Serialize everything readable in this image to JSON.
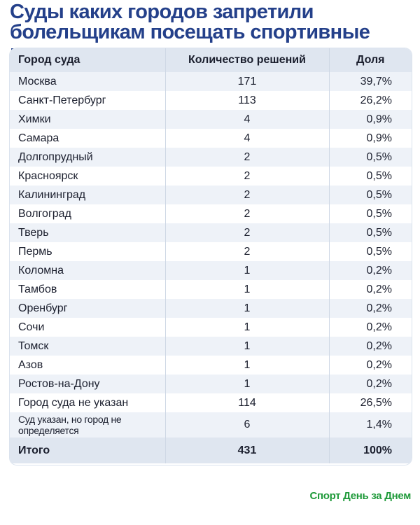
{
  "title": "Суды каких городов запретили болельщикам посещать спортивные мероприятия",
  "table": {
    "headers": [
      "Город суда",
      "Количество решений",
      "Доля"
    ],
    "rows": [
      [
        "Москва",
        "171",
        "39,7%"
      ],
      [
        "Санкт-Петербург",
        "113",
        "26,2%"
      ],
      [
        "Химки",
        "4",
        "0,9%"
      ],
      [
        "Самара",
        "4",
        "0,9%"
      ],
      [
        "Долгопрудный",
        "2",
        "0,5%"
      ],
      [
        "Красноярск",
        "2",
        "0,5%"
      ],
      [
        "Калининград",
        "2",
        "0,5%"
      ],
      [
        "Волгоград",
        "2",
        "0,5%"
      ],
      [
        "Тверь",
        "2",
        "0,5%"
      ],
      [
        "Пермь",
        "2",
        "0,5%"
      ],
      [
        "Коломна",
        "1",
        "0,2%"
      ],
      [
        "Тамбов",
        "1",
        "0,2%"
      ],
      [
        "Оренбург",
        "1",
        "0,2%"
      ],
      [
        "Сочи",
        "1",
        "0,2%"
      ],
      [
        "Томск",
        "1",
        "0,2%"
      ],
      [
        "Азов",
        "1",
        "0,2%"
      ],
      [
        "Ростов-на-Дону",
        "1",
        "0,2%"
      ],
      [
        "Город суда не указан",
        "114",
        "26,5%"
      ],
      [
        "Суд указан, но город не определяется",
        "6",
        "1,4%"
      ]
    ],
    "total": [
      "Итого",
      "431",
      "100%"
    ]
  },
  "brand": "Спорт День за Днем",
  "colors": {
    "title": "#24408a",
    "header_bg": "#dfe6f0",
    "stripe_bg": "#eef2f8",
    "brand": "#1f9a3a"
  }
}
